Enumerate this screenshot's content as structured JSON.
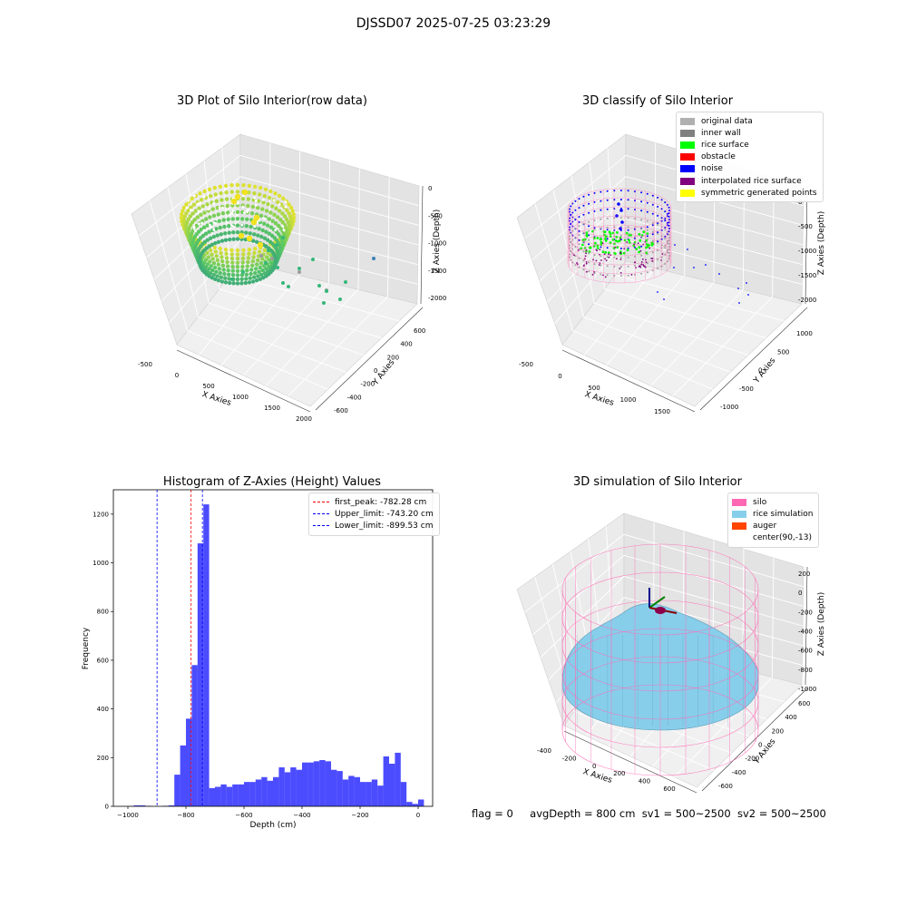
{
  "suptitle": "DJSSD07 2025-07-25 03:23:29",
  "panels": {
    "raw": {
      "title": "3D Plot of Silo Interior(row data)",
      "xlabel": "X Axies",
      "ylabel": "Y Axies",
      "zlabel": "Z Axies (Depth)",
      "xticks": [
        "-500",
        "0",
        "500",
        "1000",
        "1500",
        "2000"
      ],
      "yticks": [
        "-600",
        "-400",
        "-200",
        "0",
        "200",
        "400",
        "600"
      ],
      "zticks": [
        "0",
        "-500",
        "-1000",
        "-1500",
        "-2000"
      ],
      "colormap": "viridis"
    },
    "classify": {
      "title": "3D classify of Silo Interior",
      "xlabel": "X Axies",
      "ylabel": "Y Axies",
      "zlabel": "Z Axies (Depth)",
      "xticks": [
        "-500",
        "0",
        "500",
        "1000",
        "1500"
      ],
      "yticks": [
        "-1000",
        "-500",
        "0",
        "500",
        "1000"
      ],
      "zticks": [
        "0",
        "-500",
        "-1000",
        "-1500",
        "-2000"
      ],
      "legend": [
        {
          "label": "original data",
          "color": "#b0b0b0"
        },
        {
          "label": "inner wall",
          "color": "#808080"
        },
        {
          "label": "rice surface",
          "color": "#00ff00"
        },
        {
          "label": "obstacle",
          "color": "#ff0000"
        },
        {
          "label": "noise",
          "color": "#0000ff"
        },
        {
          "label": "interpolated rice surface",
          "color": "#800080"
        },
        {
          "label": "symmetric generated points",
          "color": "#ffff00"
        }
      ]
    },
    "simulation": {
      "title": "3D simulation of Silo Interior",
      "xlabel": "X Axies",
      "ylabel": "Y Axies",
      "zlabel": "Z Axies (Depth)",
      "xticks": [
        "-400",
        "-200",
        "0",
        "200",
        "400",
        "600"
      ],
      "yticks": [
        "-600",
        "-400",
        "-200",
        "0",
        "200",
        "400",
        "600"
      ],
      "zticks": [
        "200",
        "0",
        "-200",
        "-400",
        "-600",
        "-800",
        "-1000"
      ],
      "legend": [
        {
          "label": "silo",
          "color": "#ff69b4"
        },
        {
          "label": "rice simulation",
          "color": "#87ceeb"
        },
        {
          "label": "auger",
          "color": "#ff4500"
        },
        {
          "label": "center(90,-13)",
          "color": "#ffffff"
        }
      ]
    }
  },
  "chart_data": {
    "type": "bar",
    "title": "Histogram of Z-Axies (Height) Values",
    "xlabel": "Depth (cm)",
    "ylabel": "Frequency",
    "xlim": [
      -1050,
      50
    ],
    "ylim": [
      0,
      1300
    ],
    "xticks": [
      -1000,
      -800,
      -600,
      -400,
      -200,
      0
    ],
    "yticks": [
      0,
      200,
      400,
      600,
      800,
      1000,
      1200
    ],
    "bin_width": 20,
    "bin_start": -1000,
    "bar_color": "#0000ff",
    "values": [
      1,
      4,
      4,
      2,
      0,
      0,
      2,
      4,
      130,
      250,
      360,
      580,
      1080,
      1240,
      75,
      80,
      90,
      80,
      90,
      90,
      100,
      100,
      110,
      120,
      105,
      120,
      160,
      140,
      160,
      150,
      180,
      180,
      185,
      190,
      185,
      150,
      145,
      110,
      125,
      120,
      100,
      100,
      110,
      85,
      205,
      175,
      220,
      100,
      18,
      10,
      28
    ],
    "vlines": [
      {
        "label": "first_peak: -782.28 cm",
        "x": -782.28,
        "color": "#ff0000"
      },
      {
        "label": "Upper_limit: -743.20 cm",
        "x": -743.2,
        "color": "#0000ff"
      },
      {
        "label": "Lower_limit: -899.53 cm",
        "x": -899.53,
        "color": "#0000ff"
      }
    ],
    "legend_position": "top-right"
  },
  "footer": {
    "flag": "flag = 0",
    "avg": "avgDepth = 800 cm",
    "sv1": "sv1 = 500~2500",
    "sv2": "sv2 = 500~2500"
  }
}
